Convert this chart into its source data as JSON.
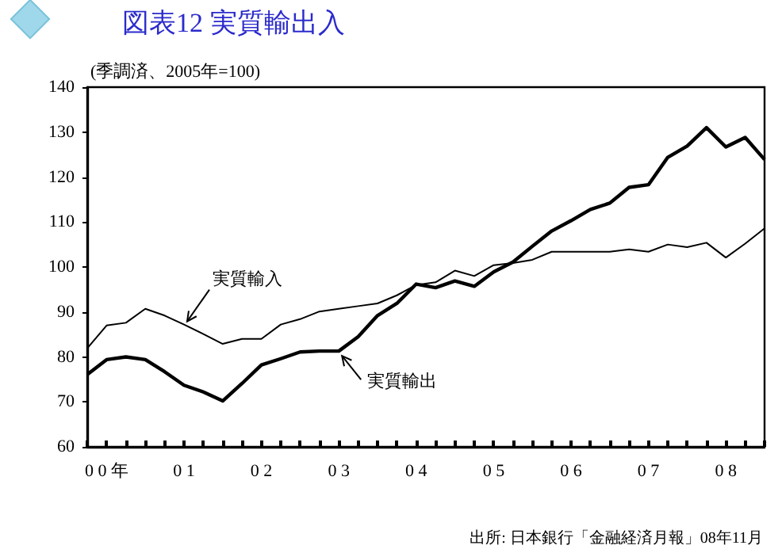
{
  "chart_data": {
    "type": "line",
    "title": "図表12 実質輸出入",
    "ylabel": "(季調済、2005年=100)",
    "categories": [
      null,
      "0 0 年",
      null,
      null,
      null,
      "0 1",
      null,
      null,
      null,
      "0 2",
      null,
      null,
      null,
      "0 3",
      null,
      null,
      null,
      "0 4",
      null,
      null,
      null,
      "0 5",
      null,
      null,
      null,
      "0 6",
      null,
      null,
      null,
      "0 7",
      null,
      null,
      null,
      "0 8",
      null,
      null
    ],
    "series": [
      {
        "color": "#000000",
        "values": [
          81.9,
          87,
          87.6,
          90.7,
          89.2,
          87.2,
          85.1,
          82.9,
          84,
          84,
          87.2,
          88.4,
          90.1,
          90.7,
          91.3,
          91.9,
          93.7,
          96,
          96.6,
          99.2,
          98,
          100.4,
          100.9,
          101.6,
          103.4,
          103.4,
          103.4,
          103.4,
          103.9,
          103.4,
          105,
          104.4,
          105.4,
          102.1,
          105.2,
          108.6
        ]
      },
      {
        "color": "#000000",
        "values": [
          76.1,
          79.4,
          80,
          79.4,
          76.7,
          73.7,
          72.2,
          70.2,
          74.1,
          78.2,
          79.6,
          81.1,
          81.3,
          81.3,
          84.5,
          89.2,
          91.9,
          96.2,
          95.4,
          96.9,
          95.7,
          98.9,
          101.1,
          104.6,
          108,
          110.3,
          112.8,
          114.2,
          117.7,
          118.3,
          124.4,
          126.9,
          131,
          126.7,
          128.8,
          123.9
        ]
      }
    ],
    "annotations": [
      {
        "text": "実質輸入",
        "x": "0 1",
        "y": 87.2
      },
      {
        "text": "実質輸出",
        "x": "0 3",
        "y": 81.3
      },
      "出所: 日本銀行「金融経済月報」08年11月"
    ],
    "ylim": [
      60,
      140
    ],
    "yticks": [
      60,
      70,
      80,
      90,
      100,
      110,
      120,
      130,
      140
    ],
    "grid": false,
    "marker": "none",
    "line_style": "solid"
  }
}
